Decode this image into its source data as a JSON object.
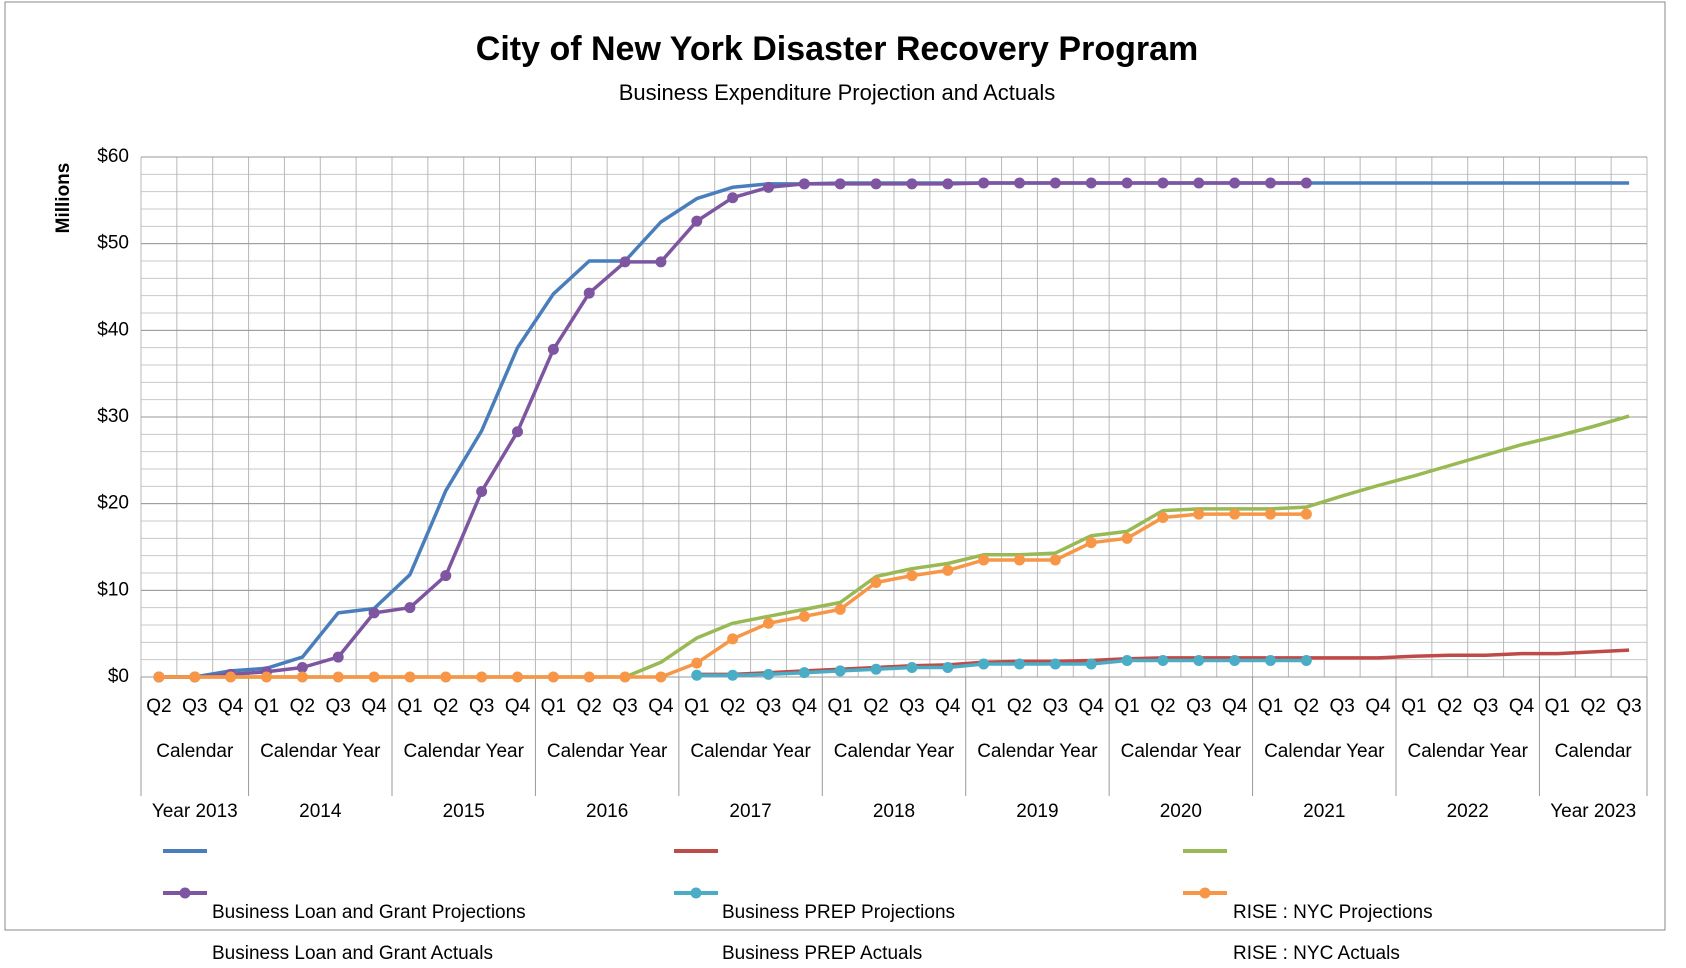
{
  "chart_data": {
    "type": "line",
    "title": "City of New York Disaster Recovery Program",
    "subtitle": "Business Expenditure Projection and Actuals",
    "y_label": "Millions",
    "categories": [
      "Q2",
      "Q3",
      "Q4",
      "Q1",
      "Q2",
      "Q3",
      "Q4",
      "Q1",
      "Q2",
      "Q3",
      "Q4",
      "Q1",
      "Q2",
      "Q3",
      "Q4",
      "Q1",
      "Q2",
      "Q3",
      "Q4",
      "Q1",
      "Q2",
      "Q3",
      "Q4",
      "Q1",
      "Q2",
      "Q3",
      "Q4",
      "Q1",
      "Q2",
      "Q3",
      "Q4",
      "Q1",
      "Q2",
      "Q3",
      "Q4",
      "Q1",
      "Q2",
      "Q3",
      "Q4",
      "Q1",
      "Q2",
      "Q3"
    ],
    "groups": [
      {
        "label": [
          "Calendar",
          "Year 2013"
        ],
        "span": 3
      },
      {
        "label": [
          "Calendar Year",
          "2014"
        ],
        "span": 4
      },
      {
        "label": [
          "Calendar Year",
          "2015"
        ],
        "span": 4
      },
      {
        "label": [
          "Calendar Year",
          "2016"
        ],
        "span": 4
      },
      {
        "label": [
          "Calendar Year",
          "2017"
        ],
        "span": 4
      },
      {
        "label": [
          "Calendar Year",
          "2018"
        ],
        "span": 4
      },
      {
        "label": [
          "Calendar Year",
          "2019"
        ],
        "span": 4
      },
      {
        "label": [
          "Calendar Year",
          "2020"
        ],
        "span": 4
      },
      {
        "label": [
          "Calendar Year",
          "2021"
        ],
        "span": 4
      },
      {
        "label": [
          "Calendar Year",
          "2022"
        ],
        "span": 4
      },
      {
        "label": [
          "Calendar",
          "Year 2023"
        ],
        "span": 3
      }
    ],
    "ylim": [
      0,
      60
    ],
    "yticks": [
      {
        "value": 0,
        "label": "$0"
      },
      {
        "value": 10,
        "label": "$10"
      },
      {
        "value": 20,
        "label": "$20"
      },
      {
        "value": 30,
        "label": "$30"
      },
      {
        "value": 40,
        "label": "$40"
      },
      {
        "value": 50,
        "label": "$50"
      },
      {
        "value": 60,
        "label": "$60"
      }
    ],
    "grid": true,
    "series": [
      {
        "name": "Business Loan and Grant Projections",
        "color": "#4a7ebb",
        "markers": false,
        "values": [
          0,
          0,
          0.7,
          1.0,
          2.3,
          7.4,
          7.9,
          11.8,
          21.5,
          28.4,
          38,
          44.2,
          48,
          48,
          52.5,
          55.2,
          56.5,
          56.9,
          56.9,
          57,
          57,
          57,
          57,
          57,
          57,
          57,
          57,
          57,
          57,
          57,
          57,
          57,
          57,
          57,
          57,
          57,
          57,
          57,
          57,
          57,
          57,
          57
        ]
      },
      {
        "name": "Business Loan and Grant Actuals",
        "color": "#7d55a0",
        "markers": true,
        "values": [
          0,
          0,
          0.3,
          0.6,
          1.1,
          2.3,
          7.4,
          8.0,
          11.7,
          21.4,
          28.3,
          37.8,
          44.3,
          47.9,
          47.9,
          52.6,
          55.3,
          56.5,
          56.9,
          56.9,
          56.9,
          56.9,
          56.9,
          57,
          57,
          57,
          57,
          57,
          57,
          57,
          57,
          57,
          57,
          null,
          null,
          null,
          null,
          null,
          null,
          null,
          null,
          null
        ]
      },
      {
        "name": "Business PREP Projections",
        "color": "#be4b48",
        "markers": false,
        "values": [
          null,
          null,
          null,
          null,
          null,
          null,
          null,
          null,
          null,
          null,
          null,
          null,
          null,
          null,
          null,
          0.3,
          0.3,
          0.5,
          0.7,
          0.9,
          1.1,
          1.3,
          1.4,
          1.7,
          1.8,
          1.8,
          1.9,
          2.1,
          2.2,
          2.2,
          2.2,
          2.2,
          2.2,
          2.2,
          2.2,
          2.4,
          2.5,
          2.5,
          2.7,
          2.7,
          2.9,
          3.1
        ]
      },
      {
        "name": "Business PREP Actuals",
        "color": "#4bacc6",
        "markers": true,
        "values": [
          null,
          null,
          null,
          null,
          null,
          null,
          null,
          null,
          null,
          null,
          null,
          null,
          null,
          null,
          null,
          0.2,
          0.2,
          0.3,
          0.5,
          0.7,
          0.9,
          1.1,
          1.1,
          1.5,
          1.5,
          1.5,
          1.5,
          1.9,
          1.9,
          1.9,
          1.9,
          1.9,
          1.9,
          null,
          null,
          null,
          null,
          null,
          null,
          null,
          null,
          null
        ]
      },
      {
        "name": "RISE : NYC Projections",
        "color": "#98b954",
        "markers": false,
        "values": [
          0,
          0,
          0,
          0,
          0,
          0,
          0,
          0,
          0,
          0,
          0,
          0,
          0,
          0,
          1.7,
          4.5,
          6.2,
          7.0,
          7.8,
          8.6,
          11.6,
          12.5,
          13.1,
          14.1,
          14.1,
          14.3,
          16.3,
          16.8,
          19.2,
          19.4,
          19.4,
          19.4,
          19.6,
          20.9,
          22.1,
          23.2,
          24.4,
          25.6,
          26.8,
          27.8,
          28.9,
          30.1
        ]
      },
      {
        "name": "RISE : NYC Actuals",
        "color": "#f79646",
        "markers": true,
        "values": [
          0,
          0,
          0,
          0,
          0,
          0,
          0,
          0,
          0,
          0,
          0,
          0,
          0,
          0,
          0,
          1.6,
          4.4,
          6.2,
          7.0,
          7.8,
          10.9,
          11.7,
          12.3,
          13.5,
          13.5,
          13.5,
          15.5,
          16.0,
          18.4,
          18.8,
          18.8,
          18.8,
          18.8,
          null,
          null,
          null,
          null,
          null,
          null,
          null,
          null,
          null
        ]
      }
    ]
  }
}
